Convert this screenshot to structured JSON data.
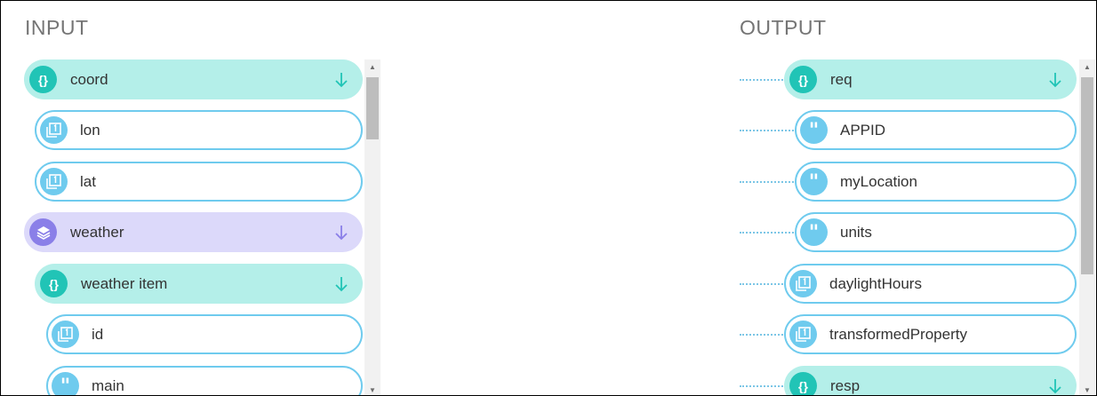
{
  "input": {
    "heading": "INPUT",
    "items": [
      {
        "label": "coord",
        "kind": "object",
        "icon": "object-braces-icon",
        "expandable": true
      },
      {
        "label": "lon",
        "kind": "number",
        "icon": "number-icon"
      },
      {
        "label": "lat",
        "kind": "number",
        "icon": "number-icon"
      },
      {
        "label": "weather",
        "kind": "array",
        "icon": "layers-icon",
        "expandable": true
      },
      {
        "label": "weather item",
        "kind": "object",
        "icon": "object-braces-icon",
        "expandable": true
      },
      {
        "label": "id",
        "kind": "number",
        "icon": "number-icon"
      },
      {
        "label": "main",
        "kind": "string",
        "icon": "quote-icon"
      }
    ]
  },
  "output": {
    "heading": "OUTPUT",
    "items": [
      {
        "label": "req",
        "kind": "object",
        "icon": "object-braces-icon",
        "expandable": true
      },
      {
        "label": "APPID",
        "kind": "string",
        "icon": "quote-icon"
      },
      {
        "label": "myLocation",
        "kind": "string",
        "icon": "quote-icon"
      },
      {
        "label": "units",
        "kind": "string",
        "icon": "quote-icon"
      },
      {
        "label": "daylightHours",
        "kind": "number",
        "icon": "number-icon"
      },
      {
        "label": "transformedProperty",
        "kind": "number",
        "icon": "number-icon"
      },
      {
        "label": "resp",
        "kind": "object",
        "icon": "object-braces-icon",
        "expandable": true
      }
    ]
  },
  "colors": {
    "object_bg": "#b4efe9",
    "object_icon": "#21c4b6",
    "array_bg": "#dcd9fa",
    "array_icon": "#8a7fe8",
    "leaf_border": "#6fcbee",
    "connector": "#7cc6e6"
  }
}
